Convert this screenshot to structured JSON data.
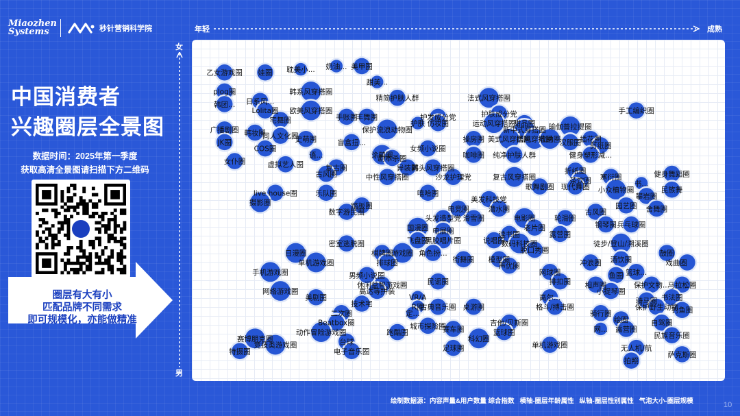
{
  "header": {
    "brand_en": "Miaozhen Systems",
    "brand_zh": "秒针营销科学院"
  },
  "title_lines": [
    "中国消费者",
    "兴趣圈层全景图"
  ],
  "info_lines": [
    "数据时间：2025年第一季度",
    "获取高清全景图请扫描下方二维码"
  ],
  "arrow_lines": [
    "圈层有大有小",
    "匹配品牌不同需求",
    "即可规模化，亦能做精准"
  ],
  "axis": {
    "left_label": "年轻",
    "right_label": "成熟",
    "top_label": "女",
    "bottom_label": "男"
  },
  "footer": {
    "source": "绘制数据源：内容声量&用户数量 综合指数",
    "x_note": "横轴-圈层年龄属性",
    "y_note": "纵轴-圈层性别属性",
    "size_note": "气泡大小-圈层规模"
  },
  "page_number": "10",
  "colors": {
    "background": "#2a58d8",
    "bubble": "#2656d4",
    "bubble_ring": "#dfe7f8",
    "plot_bg": "#ffffff",
    "arrow_fill": "#ffffff",
    "arrow_text": "#1a3fbf"
  },
  "chart_data": {
    "type": "scatter",
    "xlim": [
      0,
      100
    ],
    "ylim": [
      0,
      100
    ],
    "grid": true,
    "points": [
      {
        "label": "乙女游戏圈",
        "x": 4,
        "y": 94,
        "size": 3
      },
      {
        "label": "娃圈",
        "x": 12,
        "y": 94,
        "size": 3
      },
      {
        "label": "耽美小...",
        "x": 19,
        "y": 95,
        "size": 2
      },
      {
        "label": "奶油...",
        "x": 26,
        "y": 96,
        "size": 2
      },
      {
        "label": "美甲圈",
        "x": 31,
        "y": 96,
        "size": 3
      },
      {
        "label": "甜美...",
        "x": 34,
        "y": 91,
        "size": 2
      },
      {
        "label": "plog圈",
        "x": 4,
        "y": 88,
        "size": 3
      },
      {
        "label": "日系风...",
        "x": 11,
        "y": 85,
        "size": 3
      },
      {
        "label": "韩系风穿搭圈",
        "x": 21,
        "y": 88,
        "size": 4
      },
      {
        "label": "精简护肤人群",
        "x": 38,
        "y": 86,
        "size": 3
      },
      {
        "label": "韩团...",
        "x": 4,
        "y": 84,
        "size": 3
      },
      {
        "label": "Lolita圈",
        "x": 12,
        "y": 82,
        "size": 3
      },
      {
        "label": "欧美风穿搭圈",
        "x": 21,
        "y": 82,
        "size": 4
      },
      {
        "label": "手账圈",
        "x": 28,
        "y": 80,
        "size": 3
      },
      {
        "label": "丰舞圈",
        "x": 32,
        "y": 80,
        "size": 3
      },
      {
        "label": "法式风穿搭圈",
        "x": 56,
        "y": 86,
        "size": 4
      },
      {
        "label": "手工编织圈",
        "x": 85,
        "y": 82,
        "size": 3
      },
      {
        "label": "宅舞圈",
        "x": 15,
        "y": 79,
        "size": 3
      },
      {
        "label": "护发成分党",
        "x": 46,
        "y": 80,
        "size": 3
      },
      {
        "label": "护肤成分党",
        "x": 58,
        "y": 81,
        "size": 3
      },
      {
        "label": "护肤",
        "x": 42,
        "y": 78,
        "size": 2
      },
      {
        "label": "仿妆圈",
        "x": 46,
        "y": 78,
        "size": 3
      },
      {
        "label": "运动风穿搭圈",
        "x": 57,
        "y": 78,
        "size": 4
      },
      {
        "label": "甜品圈",
        "x": 63,
        "y": 78,
        "size": 3
      },
      {
        "label": "广播剧圈",
        "x": 4,
        "y": 76,
        "size": 3
      },
      {
        "label": "韩妆圈",
        "x": 10,
        "y": 75,
        "size": 3
      },
      {
        "label": "同人文化圈",
        "x": 15,
        "y": 74,
        "size": 3
      },
      {
        "label": "保护流浪动物圈",
        "x": 36,
        "y": 76,
        "size": 4
      },
      {
        "label": "瑜伽普拉提圈",
        "x": 72,
        "y": 77,
        "size": 4
      },
      {
        "label": "新中式穿搭圈",
        "x": 63,
        "y": 76,
        "size": 4
      },
      {
        "label": "国风穿搭圈",
        "x": 65,
        "y": 73,
        "size": 4
      },
      {
        "label": "插花圈",
        "x": 76,
        "y": 73,
        "size": 3
      },
      {
        "label": "JK圈",
        "x": 4,
        "y": 72,
        "size": 3
      },
      {
        "label": "史萌圈",
        "x": 20,
        "y": 73,
        "size": 3
      },
      {
        "label": "盲盒扭...",
        "x": 29,
        "y": 72,
        "size": 3
      },
      {
        "label": "操房圈",
        "x": 53,
        "y": 73,
        "size": 3
      },
      {
        "label": "美式风穿搭圈",
        "x": 60,
        "y": 73,
        "size": 4
      },
      {
        "label": "收纳圈",
        "x": 68,
        "y": 73,
        "size": 4
      },
      {
        "label": "汉服圈",
        "x": 72,
        "y": 72,
        "size": 3
      },
      {
        "label": "剪纸圈",
        "x": 78,
        "y": 71,
        "size": 3
      },
      {
        "label": "COS圈",
        "x": 12,
        "y": 70,
        "size": 3
      },
      {
        "label": "语...",
        "x": 22,
        "y": 68,
        "size": 2
      },
      {
        "label": "女频小说圈",
        "x": 44,
        "y": 70,
        "size": 3
      },
      {
        "label": "咖啡圈",
        "x": 53,
        "y": 68,
        "size": 3
      },
      {
        "label": "纯净护肤人群",
        "x": 61,
        "y": 68,
        "size": 3
      },
      {
        "label": "健身塑形减...",
        "x": 76,
        "y": 68,
        "size": 3
      },
      {
        "label": "女仆圈",
        "x": 6,
        "y": 66,
        "size": 3
      },
      {
        "label": "虚拟艺人圈",
        "x": 16,
        "y": 65,
        "size": 3
      },
      {
        "label": "涂鸦圈",
        "x": 35,
        "y": 68,
        "size": 4
      },
      {
        "label": "剧本杀圈",
        "x": 37,
        "y": 67,
        "size": 3
      },
      {
        "label": "复古圈",
        "x": 26,
        "y": 64,
        "size": 3
      },
      {
        "label": "异装圈",
        "x": 40,
        "y": 64,
        "size": 3
      },
      {
        "label": "古风圈",
        "x": 24,
        "y": 62,
        "size": 3
      },
      {
        "label": "中性风穿搭圈",
        "x": 36,
        "y": 61,
        "size": 3
      },
      {
        "label": "韩头风穿搭圈",
        "x": 45,
        "y": 64,
        "size": 3
      },
      {
        "label": "折纸圈",
        "x": 73,
        "y": 63,
        "size": 3
      },
      {
        "label": "沙龙护理党",
        "x": 49,
        "y": 61,
        "size": 3
      },
      {
        "label": "复古风穿搭圈",
        "x": 61,
        "y": 61,
        "size": 4
      },
      {
        "label": "茶饮圈",
        "x": 74,
        "y": 60,
        "size": 3
      },
      {
        "label": "寒衍圈",
        "x": 80,
        "y": 61,
        "size": 3
      },
      {
        "label": "健身舞蹈圈",
        "x": 92,
        "y": 62,
        "size": 3
      },
      {
        "label": "书...",
        "x": 86,
        "y": 59,
        "size": 2
      },
      {
        "label": "嘻哈圈",
        "x": 44,
        "y": 56,
        "size": 3
      },
      {
        "label": "歌舞剧圈",
        "x": 66,
        "y": 58,
        "size": 3
      },
      {
        "label": "现代舞圈",
        "x": 73,
        "y": 58,
        "size": 3
      },
      {
        "label": "小众植物圈",
        "x": 81,
        "y": 57,
        "size": 4
      },
      {
        "label": "民族舞",
        "x": 92,
        "y": 57,
        "size": 3
      },
      {
        "label": "live house圈",
        "x": 14,
        "y": 56,
        "size": 3
      },
      {
        "label": "乐队圈",
        "x": 24,
        "y": 56,
        "size": 3
      },
      {
        "label": "摄影圈",
        "x": 11,
        "y": 53,
        "size": 4
      },
      {
        "label": "美发科技党",
        "x": 56,
        "y": 54,
        "size": 3
      },
      {
        "label": "攀岩圈",
        "x": 87,
        "y": 55,
        "size": 3
      },
      {
        "label": "踏板圈",
        "x": 31,
        "y": 52,
        "size": 3
      },
      {
        "label": "电竞圈",
        "x": 50,
        "y": 51,
        "size": 3
      },
      {
        "label": "潜水圈",
        "x": 58,
        "y": 51,
        "size": 3
      },
      {
        "label": "园艺圈",
        "x": 83,
        "y": 52,
        "size": 3
      },
      {
        "label": "舍舞圈",
        "x": 89,
        "y": 51,
        "size": 3
      },
      {
        "label": "数字游民圈",
        "x": 28,
        "y": 50,
        "size": 3
      },
      {
        "label": "头发造型党",
        "x": 47,
        "y": 48,
        "size": 3
      },
      {
        "label": "滑雪圈",
        "x": 53,
        "y": 48,
        "size": 3
      },
      {
        "label": "电影圈",
        "x": 63,
        "y": 48,
        "size": 4
      },
      {
        "label": "轮滑圈",
        "x": 71,
        "y": 48,
        "size": 3
      },
      {
        "label": "古风圈",
        "x": 77,
        "y": 50,
        "size": 3
      },
      {
        "label": "钢琴圈",
        "x": 79,
        "y": 46,
        "size": 3
      },
      {
        "label": "兵乓球圈",
        "x": 84,
        "y": 46,
        "size": 3
      },
      {
        "label": "国漫圈",
        "x": 42,
        "y": 45,
        "size": 4
      },
      {
        "label": "电展圈",
        "x": 47,
        "y": 44,
        "size": 3
      },
      {
        "label": "读书圈",
        "x": 60,
        "y": 43,
        "size": 3
      },
      {
        "label": "老片圈",
        "x": 65,
        "y": 45,
        "size": 3
      },
      {
        "label": "露营圈",
        "x": 70,
        "y": 43,
        "size": 3
      },
      {
        "label": "密室逃脱圈",
        "x": 28,
        "y": 40,
        "size": 3
      },
      {
        "label": "飞盘圈",
        "x": 42,
        "y": 41,
        "size": 3
      },
      {
        "label": "黑胶唱片圈",
        "x": 47,
        "y": 41,
        "size": 3
      },
      {
        "label": "说唱圈",
        "x": 57,
        "y": 41,
        "size": 3
      },
      {
        "label": "数码科技圈",
        "x": 62,
        "y": 40,
        "size": 4
      },
      {
        "label": "脱口秀圈",
        "x": 65,
        "y": 38,
        "size": 3
      },
      {
        "label": "徒步/登山/溯溪圈",
        "x": 82,
        "y": 40,
        "size": 4
      },
      {
        "label": "棋牌圈",
        "x": 35,
        "y": 37,
        "size": 3
      },
      {
        "label": "游戏圈",
        "x": 39,
        "y": 37,
        "size": 4
      },
      {
        "label": "角色扮...",
        "x": 45,
        "y": 37,
        "size": 3
      },
      {
        "label": "街舞圈",
        "x": 51,
        "y": 35,
        "size": 3
      },
      {
        "label": "模型圈",
        "x": 58,
        "y": 35,
        "size": 3
      },
      {
        "label": "鼓圈",
        "x": 91,
        "y": 37,
        "size": 3
      },
      {
        "label": "日漫圈",
        "x": 18,
        "y": 37,
        "size": 4
      },
      {
        "label": "单机游戏圈",
        "x": 22,
        "y": 34,
        "size": 4
      },
      {
        "label": "排球圈",
        "x": 36,
        "y": 34,
        "size": 3
      },
      {
        "label": "声优圈",
        "x": 60,
        "y": 33,
        "size": 3
      },
      {
        "label": "冲浪圈",
        "x": 76,
        "y": 34,
        "size": 3
      },
      {
        "label": "酒饮圈",
        "x": 82,
        "y": 35,
        "size": 3
      },
      {
        "label": "戏曲圈",
        "x": 95,
        "y": 34,
        "size": 3
      },
      {
        "label": "手机游戏圈",
        "x": 13,
        "y": 31,
        "size": 4
      },
      {
        "label": "男频小说圈",
        "x": 32,
        "y": 30,
        "size": 3
      },
      {
        "label": "网球圈",
        "x": 68,
        "y": 31,
        "size": 3
      },
      {
        "label": "鱼圈",
        "x": 81,
        "y": 30,
        "size": 3
      },
      {
        "label": "篮球...",
        "x": 85,
        "y": 31,
        "size": 3
      },
      {
        "label": "休闲益智游戏圈",
        "x": 35,
        "y": 27,
        "size": 3
      },
      {
        "label": "民谣圈",
        "x": 46,
        "y": 28,
        "size": 3
      },
      {
        "label": "排扣圈",
        "x": 70,
        "y": 28,
        "size": 3
      },
      {
        "label": "相声圈",
        "x": 77,
        "y": 27,
        "size": 3
      },
      {
        "label": "保护文物...",
        "x": 88,
        "y": 27,
        "size": 3
      },
      {
        "label": "马拉松圈",
        "x": 94,
        "y": 27,
        "size": 3
      },
      {
        "label": "网络游戏圈",
        "x": 15,
        "y": 25,
        "size": 4
      },
      {
        "label": "高达等拼装",
        "x": 34,
        "y": 25,
        "size": 3
      },
      {
        "label": "小提琴圈",
        "x": 80,
        "y": 25,
        "size": 3
      },
      {
        "label": "美剧圈",
        "x": 22,
        "y": 23,
        "size": 3
      },
      {
        "label": "VR/A",
        "x": 42,
        "y": 23,
        "size": 2
      },
      {
        "label": "高尔...",
        "x": 68,
        "y": 23,
        "size": 3
      },
      {
        "label": "书法圈",
        "x": 92,
        "y": 23,
        "size": 3
      },
      {
        "label": "骑马圈",
        "x": 87,
        "y": 22,
        "size": 3
      },
      {
        "label": "技术宅",
        "x": 31,
        "y": 21,
        "size": 3
      },
      {
        "label": "R圈",
        "x": 42,
        "y": 20,
        "size": 2
      },
      {
        "label": "古典音乐圈",
        "x": 46,
        "y": 20,
        "size": 3
      },
      {
        "label": "桌游圈",
        "x": 53,
        "y": 20,
        "size": 3
      },
      {
        "label": "格斗/搏击圈",
        "x": 69,
        "y": 20,
        "size": 3
      },
      {
        "label": "保护野生动物",
        "x": 89,
        "y": 20,
        "size": 3
      },
      {
        "label": "钓鱼圈",
        "x": 94,
        "y": 19,
        "size": 3
      },
      {
        "label": "二次圈",
        "x": 27,
        "y": 18,
        "size": 3
      },
      {
        "label": "定...",
        "x": 41,
        "y": 18,
        "size": 2
      },
      {
        "label": "骑行圈",
        "x": 78,
        "y": 18,
        "size": 3
      },
      {
        "label": "Beatbox圈",
        "x": 26,
        "y": 15,
        "size": 3
      },
      {
        "label": "城市探险圈",
        "x": 44,
        "y": 14,
        "size": 3
      },
      {
        "label": "吉他/贝斯圈",
        "x": 60,
        "y": 15,
        "size": 3
      },
      {
        "label": "绘圈",
        "x": 82,
        "y": 16,
        "size": 3
      },
      {
        "label": "自驾圈",
        "x": 90,
        "y": 15,
        "size": 3
      },
      {
        "label": "动作冒险游戏圈",
        "x": 23,
        "y": 12,
        "size": 4
      },
      {
        "label": "跑酷圈",
        "x": 38,
        "y": 12,
        "size": 3
      },
      {
        "label": "赛车圈",
        "x": 49,
        "y": 13,
        "size": 3
      },
      {
        "label": "网...",
        "x": 78,
        "y": 13,
        "size": 2
      },
      {
        "label": "露营圈",
        "x": 83,
        "y": 13,
        "size": 3
      },
      {
        "label": "篮球圈",
        "x": 59,
        "y": 12,
        "size": 3
      },
      {
        "label": "赛博朋克圈",
        "x": 10,
        "y": 10,
        "size": 4
      },
      {
        "label": "台球",
        "x": 28,
        "y": 9,
        "size": 3
      },
      {
        "label": "科幻圈",
        "x": 54,
        "y": 10,
        "size": 4
      },
      {
        "label": "民族音乐圈",
        "x": 92,
        "y": 11,
        "size": 3
      },
      {
        "label": "竞技类游戏圈",
        "x": 14,
        "y": 8,
        "size": 4
      },
      {
        "label": "电子音乐圈",
        "x": 29,
        "y": 6,
        "size": 3
      },
      {
        "label": "足球圈",
        "x": 49,
        "y": 7,
        "size": 3
      },
      {
        "label": "单机游戏圈",
        "x": 68,
        "y": 8,
        "size": 3
      },
      {
        "label": "无人机/航",
        "x": 85,
        "y": 7,
        "size": 3
      },
      {
        "label": "特摄圈",
        "x": 7,
        "y": 6,
        "size": 3
      },
      {
        "label": "萨克斯圈",
        "x": 94,
        "y": 5,
        "size": 3
      },
      {
        "label": "拍照",
        "x": 84,
        "y": 3,
        "size": 3
      }
    ]
  }
}
